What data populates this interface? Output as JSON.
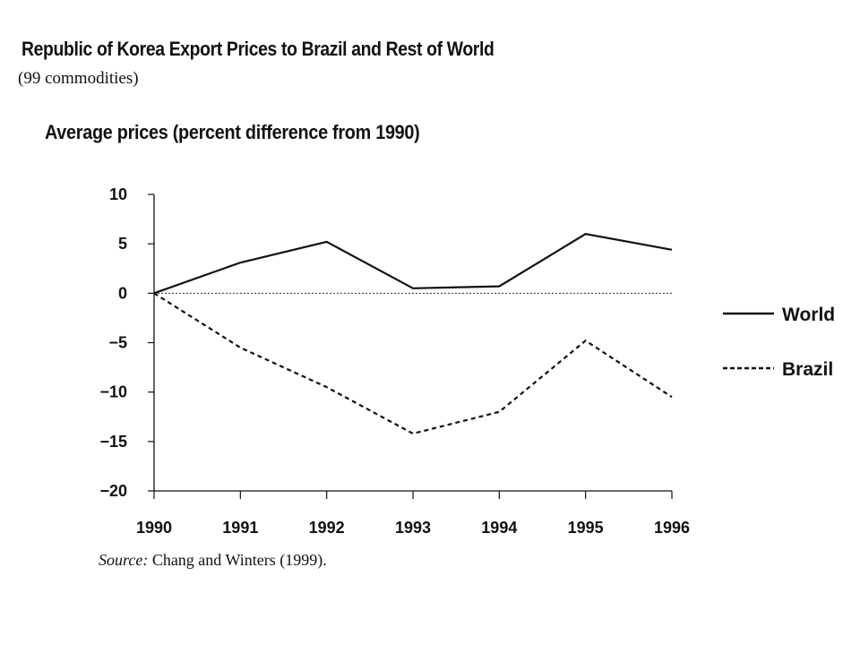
{
  "header": {
    "title": "Republic of Korea Export Prices to Brazil and Rest of World",
    "subtitle": "(99 commodities)"
  },
  "footer": {
    "source_label": "Source:",
    "source_text": " Chang and Winters (1999)."
  },
  "chart_data": {
    "type": "line",
    "title": "Average prices (percent difference from 1990)",
    "xlabel": "",
    "ylabel": "",
    "categories": [
      "1990",
      "1991",
      "1992",
      "1993",
      "1994",
      "1995",
      "1996"
    ],
    "ylim": [
      -20,
      10
    ],
    "yticks": [
      10,
      5,
      0,
      -5,
      -10,
      -15,
      -20
    ],
    "ytick_labels": [
      "10",
      "5",
      "0",
      "−5",
      "−10",
      "−15",
      "−20"
    ],
    "zero_reference_line": true,
    "grid": false,
    "legend_position": "right",
    "series": [
      {
        "name": "World",
        "style": "solid",
        "color": "#111111",
        "values": [
          0,
          3.1,
          5.2,
          0.5,
          0.7,
          6.0,
          4.4
        ]
      },
      {
        "name": "Brazil",
        "style": "dashed",
        "color": "#111111",
        "values": [
          0,
          -5.5,
          -9.5,
          -14.2,
          -12.0,
          -4.8,
          -10.5
        ]
      }
    ]
  }
}
